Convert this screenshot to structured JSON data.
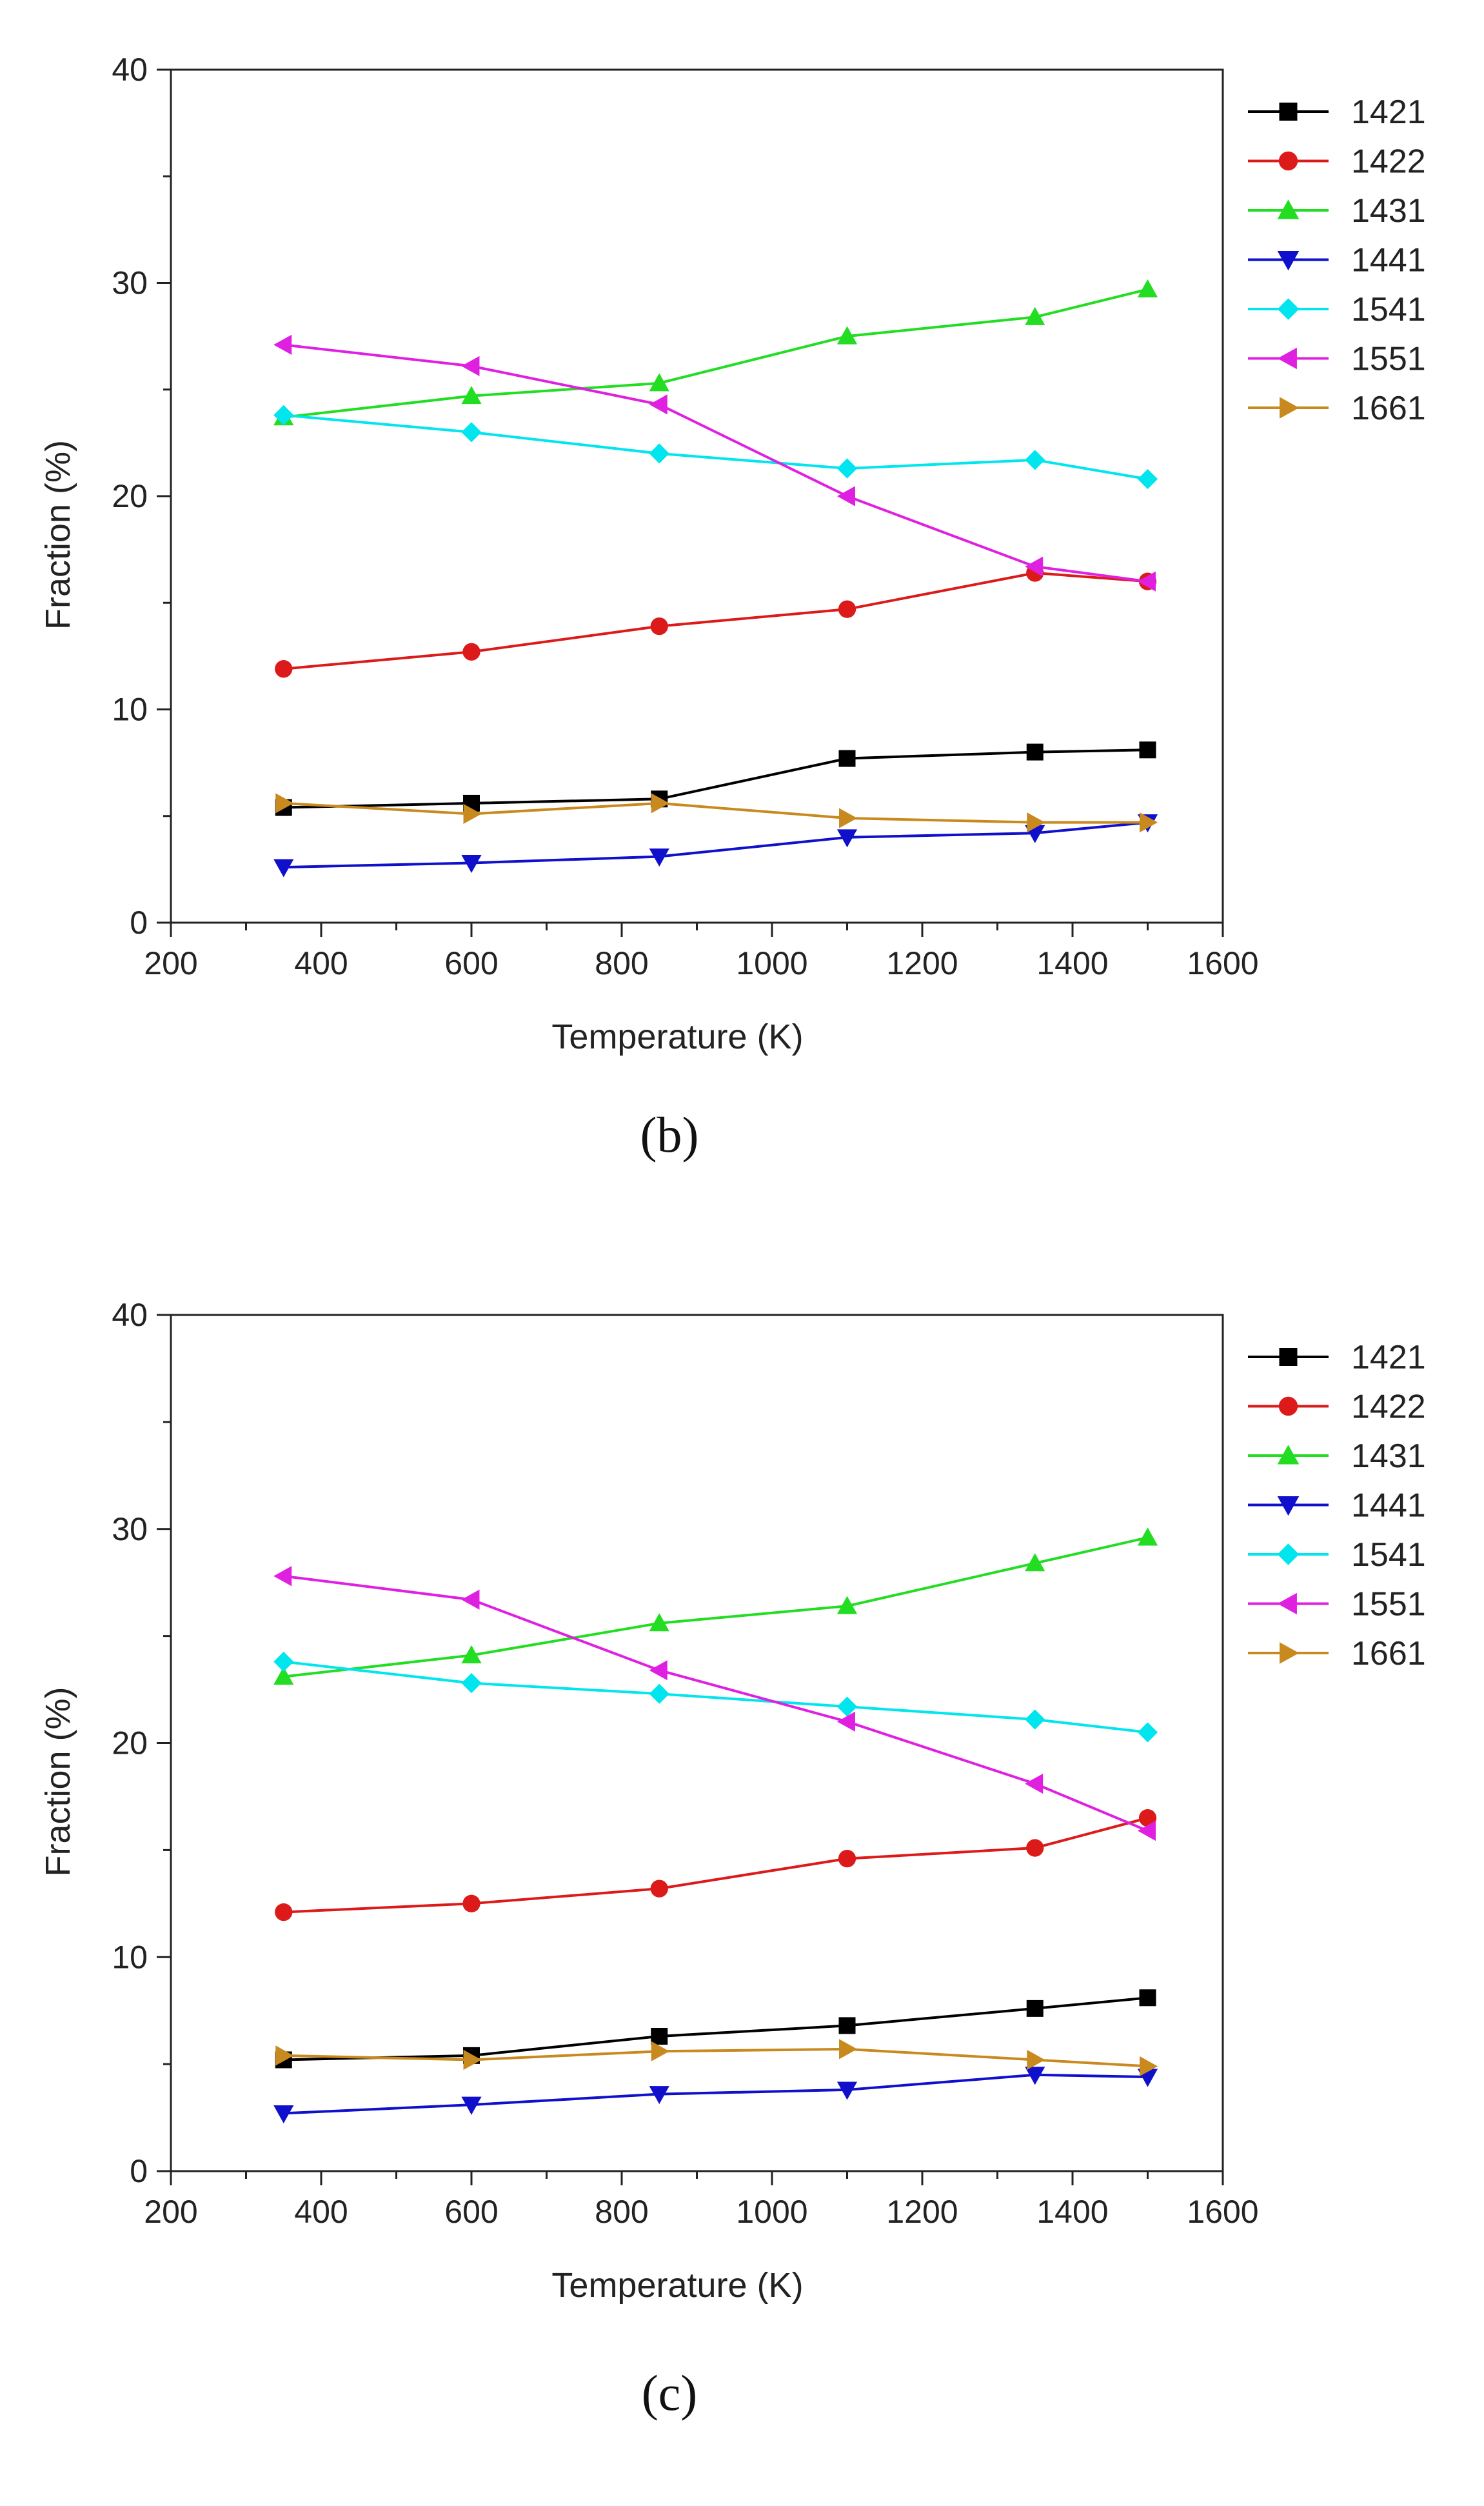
{
  "chart_data": [
    {
      "type": "line",
      "panel_label": "(b)",
      "xlabel": "Temperature (K)",
      "ylabel": "Fraction (%)",
      "xlim": [
        200,
        1600
      ],
      "ylim": [
        0,
        40
      ],
      "xticks": [
        200,
        400,
        600,
        800,
        1000,
        1200,
        1400,
        1600
      ],
      "yticks": [
        0,
        10,
        20,
        30,
        40
      ],
      "grid": false,
      "legend_position": "right",
      "x": [
        350,
        600,
        850,
        1100,
        1350,
        1500
      ],
      "series": [
        {
          "name": "1421",
          "color": "#000000",
          "marker": "square",
          "values": [
            5.4,
            5.6,
            5.8,
            7.7,
            8.0,
            8.1
          ]
        },
        {
          "name": "1422",
          "color": "#dd1a1a",
          "marker": "circle",
          "values": [
            11.9,
            12.7,
            13.9,
            14.7,
            16.4,
            16.0
          ]
        },
        {
          "name": "1431",
          "color": "#22dd22",
          "marker": "triangle-up",
          "values": [
            23.7,
            24.7,
            25.3,
            27.5,
            28.4,
            29.7
          ]
        },
        {
          "name": "1441",
          "color": "#1010cc",
          "marker": "triangle-down",
          "values": [
            2.6,
            2.8,
            3.1,
            4.0,
            4.2,
            4.7
          ]
        },
        {
          "name": "1541",
          "color": "#00e5ee",
          "marker": "diamond",
          "values": [
            23.8,
            23.0,
            22.0,
            21.3,
            21.7,
            20.8
          ]
        },
        {
          "name": "1551",
          "color": "#e020e0",
          "marker": "triangle-left",
          "values": [
            27.1,
            26.1,
            24.3,
            20.0,
            16.7,
            16.0
          ]
        },
        {
          "name": "1661",
          "color": "#c88a1e",
          "marker": "triangle-right",
          "values": [
            5.6,
            5.1,
            5.6,
            4.9,
            4.7,
            4.7
          ]
        }
      ]
    },
    {
      "type": "line",
      "panel_label": "(c)",
      "xlabel": "Temperature (K)",
      "ylabel": "Fraction (%)",
      "xlim": [
        200,
        1600
      ],
      "ylim": [
        0,
        40
      ],
      "xticks": [
        200,
        400,
        600,
        800,
        1000,
        1200,
        1400,
        1600
      ],
      "yticks": [
        0,
        10,
        20,
        30,
        40
      ],
      "grid": false,
      "legend_position": "right",
      "x": [
        350,
        600,
        850,
        1100,
        1350,
        1500
      ],
      "series": [
        {
          "name": "1421",
          "color": "#000000",
          "marker": "square",
          "values": [
            5.2,
            5.4,
            6.3,
            6.8,
            7.6,
            8.1
          ]
        },
        {
          "name": "1422",
          "color": "#dd1a1a",
          "marker": "circle",
          "values": [
            12.1,
            12.5,
            13.2,
            14.6,
            15.1,
            16.5
          ]
        },
        {
          "name": "1431",
          "color": "#22dd22",
          "marker": "triangle-up",
          "values": [
            23.1,
            24.1,
            25.6,
            26.4,
            28.4,
            29.6
          ]
        },
        {
          "name": "1441",
          "color": "#1010cc",
          "marker": "triangle-down",
          "values": [
            2.7,
            3.1,
            3.6,
            3.8,
            4.5,
            4.4
          ]
        },
        {
          "name": "1541",
          "color": "#00e5ee",
          "marker": "diamond",
          "values": [
            23.8,
            22.8,
            22.3,
            21.7,
            21.1,
            20.5
          ]
        },
        {
          "name": "1551",
          "color": "#e020e0",
          "marker": "triangle-left",
          "values": [
            27.8,
            26.7,
            23.4,
            21.0,
            18.1,
            15.9
          ]
        },
        {
          "name": "1661",
          "color": "#c88a1e",
          "marker": "triangle-right",
          "values": [
            5.4,
            5.2,
            5.6,
            5.7,
            5.2,
            4.9
          ]
        }
      ]
    }
  ]
}
